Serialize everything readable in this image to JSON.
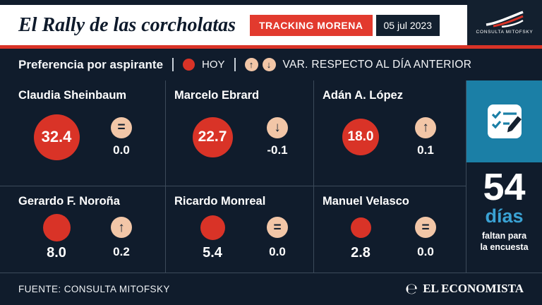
{
  "header": {
    "title": "El Rally de las corcholatas",
    "badge": "TRACKING MORENA",
    "date": "05 jul 2023",
    "logo_text": "CONSULTA MITOFSKY"
  },
  "legend": {
    "title": "Preferencia por aspirante",
    "today_label": "HOY",
    "variation_label": "VAR. RESPECTO AL DÍA ANTERIOR"
  },
  "icons": {
    "up_arrow": "↑",
    "down_arrow": "↓",
    "equal_sign": "="
  },
  "candidates": [
    {
      "name": "Claudia Sheinbaum",
      "value": "32.4",
      "trend": "equal",
      "variation": "0.0"
    },
    {
      "name": "Marcelo Ebrard",
      "value": "22.7",
      "trend": "down",
      "variation": "-0.1"
    },
    {
      "name": "Adán A. López",
      "value": "18.0",
      "trend": "up",
      "variation": "0.1"
    },
    {
      "name": "Gerardo F. Noroña",
      "value": "8.0",
      "trend": "up",
      "variation": "0.2"
    },
    {
      "name": "Ricardo Monreal",
      "value": "5.4",
      "trend": "equal",
      "variation": "0.0"
    },
    {
      "name": "Manuel Velasco",
      "value": "2.8",
      "trend": "equal",
      "variation": "0.0"
    }
  ],
  "countdown": {
    "number": "54",
    "unit": "días",
    "caption_line1": "faltan para",
    "caption_line2": "la encuesta"
  },
  "footer": {
    "source": "FUENTE: CONSULTA MITOFSKY",
    "brand": "EL ECONOMISTA",
    "brand_mark": "℮"
  },
  "colors": {
    "background": "#101c2c",
    "red": "#d93327",
    "badge_red": "#e23a2e",
    "peach": "#f2c6a7",
    "teal": "#1b7fa6",
    "light_blue": "#3aa2d4",
    "white": "#ffffff"
  },
  "chart_data": {
    "type": "table",
    "title": "El Rally de las corcholatas",
    "subtitle": "Preferencia por aspirante — TRACKING MORENA, 05 jul 2023",
    "categories": [
      "Claudia Sheinbaum",
      "Marcelo Ebrard",
      "Adán A. López",
      "Gerardo F. Noroña",
      "Ricardo Monreal",
      "Manuel Velasco"
    ],
    "series": [
      {
        "name": "HOY",
        "values": [
          32.4,
          22.7,
          18.0,
          8.0,
          5.4,
          2.8
        ]
      },
      {
        "name": "VAR. RESPECTO AL DÍA ANTERIOR",
        "values": [
          0.0,
          -0.1,
          0.1,
          0.2,
          0.0,
          0.0
        ]
      }
    ],
    "notes": "54 días faltan para la encuesta"
  }
}
